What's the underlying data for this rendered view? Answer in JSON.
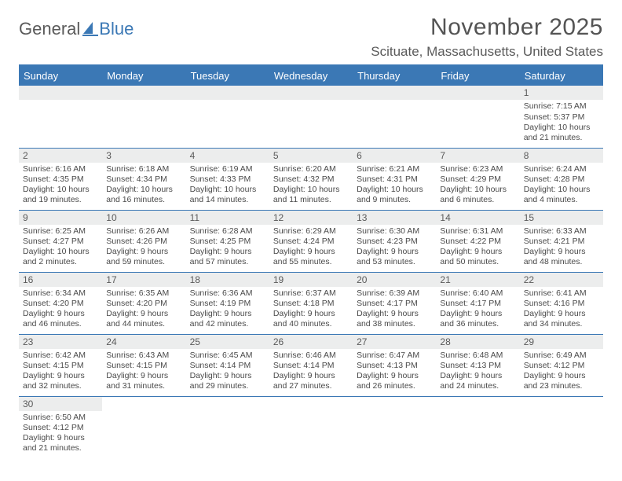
{
  "logo": {
    "part1": "General",
    "part2": "Blue"
  },
  "title": "November 2025",
  "location": "Scituate, Massachusetts, United States",
  "colors": {
    "accent": "#3b78b5",
    "header_bg": "#3b78b5",
    "header_text": "#ffffff",
    "daynum_bg": "#eceded",
    "text": "#4a4a4a",
    "title_text": "#545454"
  },
  "day_headers": [
    "Sunday",
    "Monday",
    "Tuesday",
    "Wednesday",
    "Thursday",
    "Friday",
    "Saturday"
  ],
  "weeks": [
    [
      null,
      null,
      null,
      null,
      null,
      null,
      {
        "n": "1",
        "sr": "Sunrise: 7:15 AM",
        "ss": "Sunset: 5:37 PM",
        "dl": "Daylight: 10 hours and 21 minutes."
      }
    ],
    [
      {
        "n": "2",
        "sr": "Sunrise: 6:16 AM",
        "ss": "Sunset: 4:35 PM",
        "dl": "Daylight: 10 hours and 19 minutes."
      },
      {
        "n": "3",
        "sr": "Sunrise: 6:18 AM",
        "ss": "Sunset: 4:34 PM",
        "dl": "Daylight: 10 hours and 16 minutes."
      },
      {
        "n": "4",
        "sr": "Sunrise: 6:19 AM",
        "ss": "Sunset: 4:33 PM",
        "dl": "Daylight: 10 hours and 14 minutes."
      },
      {
        "n": "5",
        "sr": "Sunrise: 6:20 AM",
        "ss": "Sunset: 4:32 PM",
        "dl": "Daylight: 10 hours and 11 minutes."
      },
      {
        "n": "6",
        "sr": "Sunrise: 6:21 AM",
        "ss": "Sunset: 4:31 PM",
        "dl": "Daylight: 10 hours and 9 minutes."
      },
      {
        "n": "7",
        "sr": "Sunrise: 6:23 AM",
        "ss": "Sunset: 4:29 PM",
        "dl": "Daylight: 10 hours and 6 minutes."
      },
      {
        "n": "8",
        "sr": "Sunrise: 6:24 AM",
        "ss": "Sunset: 4:28 PM",
        "dl": "Daylight: 10 hours and 4 minutes."
      }
    ],
    [
      {
        "n": "9",
        "sr": "Sunrise: 6:25 AM",
        "ss": "Sunset: 4:27 PM",
        "dl": "Daylight: 10 hours and 2 minutes."
      },
      {
        "n": "10",
        "sr": "Sunrise: 6:26 AM",
        "ss": "Sunset: 4:26 PM",
        "dl": "Daylight: 9 hours and 59 minutes."
      },
      {
        "n": "11",
        "sr": "Sunrise: 6:28 AM",
        "ss": "Sunset: 4:25 PM",
        "dl": "Daylight: 9 hours and 57 minutes."
      },
      {
        "n": "12",
        "sr": "Sunrise: 6:29 AM",
        "ss": "Sunset: 4:24 PM",
        "dl": "Daylight: 9 hours and 55 minutes."
      },
      {
        "n": "13",
        "sr": "Sunrise: 6:30 AM",
        "ss": "Sunset: 4:23 PM",
        "dl": "Daylight: 9 hours and 53 minutes."
      },
      {
        "n": "14",
        "sr": "Sunrise: 6:31 AM",
        "ss": "Sunset: 4:22 PM",
        "dl": "Daylight: 9 hours and 50 minutes."
      },
      {
        "n": "15",
        "sr": "Sunrise: 6:33 AM",
        "ss": "Sunset: 4:21 PM",
        "dl": "Daylight: 9 hours and 48 minutes."
      }
    ],
    [
      {
        "n": "16",
        "sr": "Sunrise: 6:34 AM",
        "ss": "Sunset: 4:20 PM",
        "dl": "Daylight: 9 hours and 46 minutes."
      },
      {
        "n": "17",
        "sr": "Sunrise: 6:35 AM",
        "ss": "Sunset: 4:20 PM",
        "dl": "Daylight: 9 hours and 44 minutes."
      },
      {
        "n": "18",
        "sr": "Sunrise: 6:36 AM",
        "ss": "Sunset: 4:19 PM",
        "dl": "Daylight: 9 hours and 42 minutes."
      },
      {
        "n": "19",
        "sr": "Sunrise: 6:37 AM",
        "ss": "Sunset: 4:18 PM",
        "dl": "Daylight: 9 hours and 40 minutes."
      },
      {
        "n": "20",
        "sr": "Sunrise: 6:39 AM",
        "ss": "Sunset: 4:17 PM",
        "dl": "Daylight: 9 hours and 38 minutes."
      },
      {
        "n": "21",
        "sr": "Sunrise: 6:40 AM",
        "ss": "Sunset: 4:17 PM",
        "dl": "Daylight: 9 hours and 36 minutes."
      },
      {
        "n": "22",
        "sr": "Sunrise: 6:41 AM",
        "ss": "Sunset: 4:16 PM",
        "dl": "Daylight: 9 hours and 34 minutes."
      }
    ],
    [
      {
        "n": "23",
        "sr": "Sunrise: 6:42 AM",
        "ss": "Sunset: 4:15 PM",
        "dl": "Daylight: 9 hours and 32 minutes."
      },
      {
        "n": "24",
        "sr": "Sunrise: 6:43 AM",
        "ss": "Sunset: 4:15 PM",
        "dl": "Daylight: 9 hours and 31 minutes."
      },
      {
        "n": "25",
        "sr": "Sunrise: 6:45 AM",
        "ss": "Sunset: 4:14 PM",
        "dl": "Daylight: 9 hours and 29 minutes."
      },
      {
        "n": "26",
        "sr": "Sunrise: 6:46 AM",
        "ss": "Sunset: 4:14 PM",
        "dl": "Daylight: 9 hours and 27 minutes."
      },
      {
        "n": "27",
        "sr": "Sunrise: 6:47 AM",
        "ss": "Sunset: 4:13 PM",
        "dl": "Daylight: 9 hours and 26 minutes."
      },
      {
        "n": "28",
        "sr": "Sunrise: 6:48 AM",
        "ss": "Sunset: 4:13 PM",
        "dl": "Daylight: 9 hours and 24 minutes."
      },
      {
        "n": "29",
        "sr": "Sunrise: 6:49 AM",
        "ss": "Sunset: 4:12 PM",
        "dl": "Daylight: 9 hours and 23 minutes."
      }
    ],
    [
      {
        "n": "30",
        "sr": "Sunrise: 6:50 AM",
        "ss": "Sunset: 4:12 PM",
        "dl": "Daylight: 9 hours and 21 minutes."
      },
      null,
      null,
      null,
      null,
      null,
      null
    ]
  ]
}
